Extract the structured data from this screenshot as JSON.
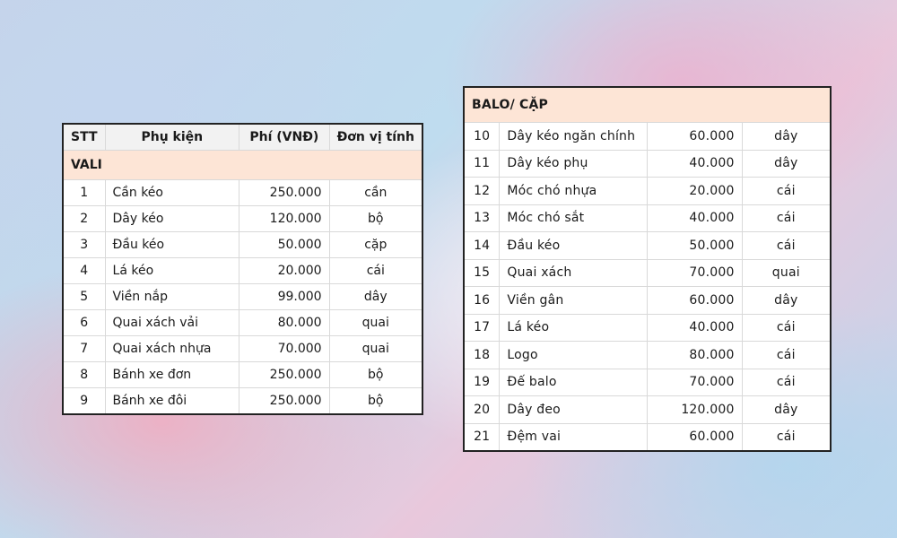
{
  "colors": {
    "header_fill": "#f2f2f2",
    "section_fill": "#fde5d6",
    "border": "#222222"
  },
  "left_table": {
    "headers": [
      "STT",
      "Phụ kiện",
      "Phí (VNĐ)",
      "Đơn vị tính"
    ],
    "section_title": "VALI",
    "rows": [
      {
        "stt": "1",
        "name": "Cần kéo",
        "fee": "250.000",
        "unit": "cần"
      },
      {
        "stt": "2",
        "name": "Dây kéo",
        "fee": "120.000",
        "unit": "bộ"
      },
      {
        "stt": "3",
        "name": "Đầu kéo",
        "fee": "50.000",
        "unit": "cặp"
      },
      {
        "stt": "4",
        "name": "Lá kéo",
        "fee": "20.000",
        "unit": "cái"
      },
      {
        "stt": "5",
        "name": "Viền nắp",
        "fee": "99.000",
        "unit": "dây"
      },
      {
        "stt": "6",
        "name": "Quai xách vải",
        "fee": "80.000",
        "unit": "quai"
      },
      {
        "stt": "7",
        "name": "Quai xách nhựa",
        "fee": "70.000",
        "unit": "quai"
      },
      {
        "stt": "8",
        "name": "Bánh xe đơn",
        "fee": "250.000",
        "unit": "bộ"
      },
      {
        "stt": "9",
        "name": "Bánh xe đôi",
        "fee": "250.000",
        "unit": "bộ"
      }
    ]
  },
  "right_table": {
    "section_title": "BALO/ CẶP",
    "rows": [
      {
        "stt": "10",
        "name": "Dây kéo ngăn chính",
        "fee": "60.000",
        "unit": "dây"
      },
      {
        "stt": "11",
        "name": "Dây kéo phụ",
        "fee": "40.000",
        "unit": "dây"
      },
      {
        "stt": "12",
        "name": "Móc chó nhựa",
        "fee": "20.000",
        "unit": "cái"
      },
      {
        "stt": "13",
        "name": "Móc chó sắt",
        "fee": "40.000",
        "unit": "cái"
      },
      {
        "stt": "14",
        "name": "Đầu kéo",
        "fee": "50.000",
        "unit": "cái"
      },
      {
        "stt": "15",
        "name": "Quai xách",
        "fee": "70.000",
        "unit": "quai"
      },
      {
        "stt": "16",
        "name": "Viền gân",
        "fee": "60.000",
        "unit": "dây"
      },
      {
        "stt": "17",
        "name": "Lá kéo",
        "fee": "40.000",
        "unit": "cái"
      },
      {
        "stt": "18",
        "name": "Logo",
        "fee": "80.000",
        "unit": "cái"
      },
      {
        "stt": "19",
        "name": "Đế balo",
        "fee": "70.000",
        "unit": "cái"
      },
      {
        "stt": "20",
        "name": "Dây đeo",
        "fee": "120.000",
        "unit": "dây"
      },
      {
        "stt": "21",
        "name": "Đệm vai",
        "fee": "60.000",
        "unit": "cái"
      }
    ]
  }
}
